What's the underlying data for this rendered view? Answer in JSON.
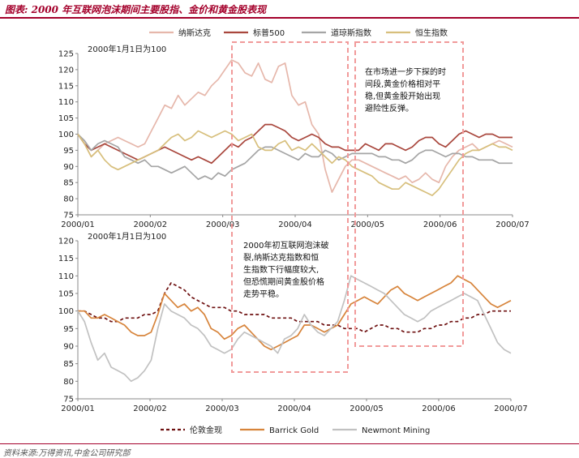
{
  "figure": {
    "title": "图表: 2000 年互联网泡沫期间主要股指、金价和黄金股表现",
    "source": "资料来源:万得资讯,中金公司研究部"
  },
  "chart_data": [
    {
      "type": "line",
      "subtitle": "2000年1月1日为100",
      "x_ticks": [
        "2000/01",
        "2000/02",
        "2000/03",
        "2000/04",
        "2000/05",
        "2000/06",
        "2000/07"
      ],
      "ylim": [
        75,
        125
      ],
      "y_ticks": [
        75,
        80,
        85,
        90,
        95,
        100,
        105,
        110,
        115,
        120,
        125
      ],
      "grid": false,
      "legend_position": "top",
      "series": [
        {
          "name": "纳斯达克",
          "color": "#e6b7ab",
          "values": [
            100,
            97,
            93,
            95,
            97,
            98,
            99,
            98,
            97,
            96,
            97,
            101,
            105,
            109,
            108,
            112,
            109,
            111,
            113,
            112,
            115,
            117,
            120,
            123,
            122,
            119,
            118,
            122,
            117,
            116,
            121,
            122,
            112,
            109,
            110,
            103,
            100,
            89,
            82,
            86,
            90,
            92,
            92,
            91,
            90,
            89,
            88,
            87,
            86,
            87,
            85,
            86,
            88,
            86,
            85,
            90,
            93,
            95,
            96,
            97,
            95,
            96,
            97,
            98,
            97,
            96
          ]
        },
        {
          "name": "标普500",
          "color": "#a9473d",
          "values": [
            100,
            97,
            95,
            96,
            97,
            96,
            95,
            94,
            93,
            92,
            93,
            94,
            95,
            96,
            95,
            94,
            93,
            92,
            93,
            92,
            91,
            93,
            95,
            97,
            96,
            98,
            99,
            101,
            103,
            103,
            102,
            101,
            99,
            98,
            99,
            100,
            99,
            97,
            96,
            96,
            95,
            95,
            95,
            97,
            96,
            95,
            97,
            97,
            96,
            95,
            96,
            98,
            99,
            99,
            97,
            96,
            98,
            100,
            101,
            100,
            99,
            100,
            100,
            99,
            99,
            99
          ]
        },
        {
          "name": "道琼斯指数",
          "color": "#a5a5a5",
          "values": [
            100,
            98,
            95,
            97,
            98,
            97,
            96,
            93,
            92,
            91,
            92,
            90,
            90,
            89,
            88,
            89,
            90,
            88,
            86,
            87,
            86,
            88,
            87,
            89,
            90,
            91,
            93,
            95,
            96,
            96,
            95,
            94,
            93,
            92,
            94,
            93,
            93,
            95,
            94,
            92,
            93,
            94,
            94,
            94,
            94,
            93,
            93,
            92,
            92,
            91,
            92,
            94,
            95,
            95,
            94,
            93,
            94,
            94,
            93,
            93,
            92,
            92,
            92,
            91,
            91,
            91
          ]
        },
        {
          "name": "恒生指数",
          "color": "#d7bf7c",
          "values": [
            100,
            97,
            93,
            95,
            92,
            90,
            89,
            90,
            91,
            92,
            93,
            94,
            95,
            97,
            99,
            100,
            98,
            99,
            101,
            100,
            99,
            100,
            101,
            100,
            98,
            99,
            100,
            96,
            95,
            95,
            97,
            98,
            95,
            96,
            95,
            97,
            95,
            93,
            91,
            93,
            92,
            90,
            89,
            88,
            87,
            85,
            84,
            83,
            83,
            85,
            84,
            83,
            82,
            81,
            83,
            86,
            89,
            92,
            94,
            95,
            95,
            96,
            97,
            96,
            96,
            95
          ]
        }
      ],
      "annotation": [
        "在市场进一步下探的时",
        "间段,黄金价格相对平",
        "稳,但黄金股开始出现",
        "避险性反弹。"
      ]
    },
    {
      "type": "line",
      "subtitle": "2000年1月1日为100",
      "x_ticks": [
        "2000/01",
        "2000/02",
        "2000/03",
        "2000/04",
        "2000/05",
        "2000/06",
        "2000/07"
      ],
      "ylim": [
        75,
        120
      ],
      "y_ticks": [
        75,
        80,
        85,
        90,
        95,
        100,
        105,
        110,
        115,
        120
      ],
      "grid": false,
      "legend_position": "bottom",
      "series": [
        {
          "name": "伦敦金现",
          "color": "#6e1010",
          "dash": "4,3",
          "values": [
            100,
            100,
            99,
            98,
            98,
            97,
            97,
            98,
            98,
            98,
            99,
            99,
            100,
            105,
            108,
            107,
            106,
            104,
            103,
            102,
            101,
            101,
            101,
            100,
            100,
            99,
            99,
            99,
            99,
            98,
            98,
            98,
            98,
            97,
            97,
            97,
            97,
            96,
            96,
            96,
            95,
            95,
            95,
            94,
            95,
            96,
            96,
            95,
            95,
            94,
            94,
            94,
            95,
            95,
            96,
            96,
            97,
            97,
            98,
            98,
            99,
            99,
            100,
            100,
            100,
            100
          ]
        },
        {
          "name": "Barrick Gold",
          "color": "#d7843b",
          "values": [
            100,
            100,
            98,
            98,
            99,
            98,
            97,
            96,
            94,
            93,
            93,
            94,
            99,
            105,
            103,
            101,
            102,
            100,
            101,
            99,
            95,
            94,
            92,
            93,
            95,
            96,
            94,
            92,
            90,
            89,
            90,
            91,
            92,
            93,
            96,
            96,
            95,
            94,
            95,
            96,
            99,
            102,
            103,
            104,
            103,
            102,
            104,
            106,
            107,
            105,
            104,
            103,
            104,
            105,
            106,
            107,
            108,
            110,
            109,
            108,
            106,
            104,
            102,
            101,
            102,
            103
          ]
        },
        {
          "name": "Newmont Mining",
          "color": "#c1c1c1",
          "values": [
            100,
            97,
            91,
            86,
            88,
            84,
            83,
            82,
            80,
            81,
            83,
            86,
            95,
            102,
            100,
            99,
            98,
            96,
            95,
            93,
            90,
            89,
            88,
            89,
            92,
            94,
            93,
            92,
            91,
            90,
            88,
            92,
            93,
            95,
            99,
            96,
            94,
            93,
            95,
            97,
            103,
            110,
            109,
            108,
            107,
            106,
            105,
            103,
            101,
            99,
            98,
            97,
            98,
            100,
            101,
            102,
            103,
            104,
            105,
            104,
            103,
            99,
            95,
            91,
            89,
            88
          ]
        }
      ],
      "annotation": [
        "2000年初互联网泡沫破",
        "裂,纳斯达克指数和恒",
        "生指数下行幅度较大,",
        "但恐慌期间黄金股价格",
        "走势平稳。"
      ]
    }
  ]
}
